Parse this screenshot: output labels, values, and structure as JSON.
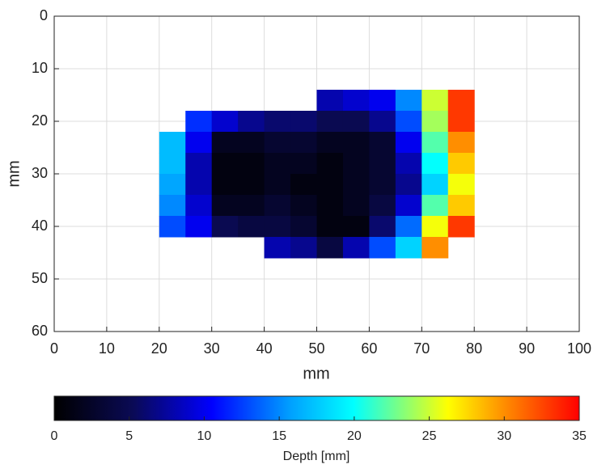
{
  "chart_data": {
    "type": "heatmap",
    "xlabel": "mm",
    "ylabel": "mm",
    "colorbar_label": "Depth [mm]",
    "xlim": [
      0,
      100
    ],
    "xticks": [
      0,
      10,
      20,
      30,
      40,
      50,
      60,
      70,
      80,
      90,
      100
    ],
    "ylim": [
      0,
      60
    ],
    "yticks": [
      0,
      10,
      20,
      30,
      40,
      50,
      60
    ],
    "y_reversed": true,
    "grid": true,
    "clim": [
      0,
      35
    ],
    "cticks": [
      0,
      5,
      10,
      15,
      20,
      25,
      30,
      35
    ],
    "x": [
      22.5,
      27.5,
      32.5,
      37.5,
      42.5,
      47.5,
      52.5,
      57.5,
      62.5,
      67.5,
      72.5,
      77.5
    ],
    "y": [
      16,
      20,
      24,
      28,
      32,
      36,
      40,
      44
    ],
    "z": [
      [
        null,
        null,
        null,
        null,
        null,
        null,
        8,
        9,
        10,
        15,
        25,
        33
      ],
      [
        null,
        12,
        9,
        7,
        6,
        6,
        5,
        5,
        7,
        13,
        24,
        33
      ],
      [
        17,
        10,
        2,
        2,
        3,
        3,
        2,
        2,
        3,
        10,
        22,
        30
      ],
      [
        17,
        8,
        1,
        1,
        2,
        2,
        1,
        2,
        3,
        8,
        20,
        28
      ],
      [
        16,
        8,
        1,
        1,
        2,
        1,
        1,
        2,
        3,
        7,
        18,
        26
      ],
      [
        15,
        9,
        2,
        2,
        3,
        2,
        1,
        2,
        4,
        9,
        22,
        28
      ],
      [
        13,
        10,
        5,
        4,
        4,
        3,
        1,
        1,
        6,
        14,
        26,
        33
      ],
      [
        null,
        null,
        null,
        null,
        8,
        7,
        4,
        8,
        13,
        18,
        30,
        null
      ]
    ]
  }
}
